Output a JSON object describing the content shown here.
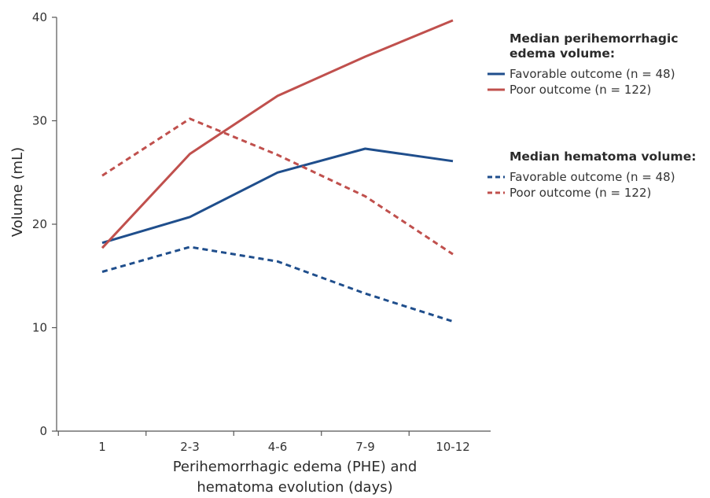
{
  "chart_data": {
    "type": "line",
    "categories": [
      "1",
      "2-3",
      "4-6",
      "7-9",
      "10-12"
    ],
    "xlabel": "Perihemorrhagic edema (PHE) and hematoma evolution (days)",
    "xlabel_lines": [
      "Perihemorrhagic edema (PHE) and",
      "hematoma evolution (days)"
    ],
    "ylabel": "Volume (mL)",
    "ylim": [
      0,
      40
    ],
    "yticks": [
      0,
      10,
      20,
      30,
      40
    ],
    "grid": false,
    "legend_position": "right",
    "legend_groups": [
      {
        "title": "Median perihemorrhagic edema volume:",
        "title_lines": [
          "Median perihemorrhagic",
          "edema volume:"
        ],
        "entries": [
          {
            "label": "Favorable outcome (n = 48)",
            "color": "#1f4e8c",
            "style": "solid"
          },
          {
            "label": "Poor outcome (n = 122)",
            "color": "#c0504d",
            "style": "solid"
          }
        ]
      },
      {
        "title": "Median hematoma volume:",
        "title_lines": [
          "Median hematoma volume:"
        ],
        "entries": [
          {
            "label": "Favorable outcome (n = 48)",
            "color": "#1f4e8c",
            "style": "dashed"
          },
          {
            "label": "Poor outcome (n = 122)",
            "color": "#c0504d",
            "style": "dashed"
          }
        ]
      }
    ],
    "series": [
      {
        "name": "Favorable outcome (n = 48)",
        "group": "Median perihemorrhagic edema volume:",
        "color": "#1f4e8c",
        "style": "solid",
        "values": [
          18.2,
          20.7,
          25.0,
          27.3,
          26.1
        ]
      },
      {
        "name": "Poor outcome (n = 122)",
        "group": "Median perihemorrhagic edema volume:",
        "color": "#c0504d",
        "style": "solid",
        "values": [
          17.7,
          26.8,
          32.4,
          36.2,
          39.7
        ]
      },
      {
        "name": "Favorable outcome (n = 48)",
        "group": "Median hematoma volume:",
        "color": "#1f4e8c",
        "style": "dashed",
        "values": [
          15.4,
          17.8,
          16.4,
          13.3,
          10.6
        ]
      },
      {
        "name": "Poor outcome (n = 122)",
        "group": "Median hematoma volume:",
        "color": "#c0504d",
        "style": "dashed",
        "values": [
          24.7,
          30.2,
          26.7,
          22.7,
          17.1
        ]
      }
    ]
  }
}
